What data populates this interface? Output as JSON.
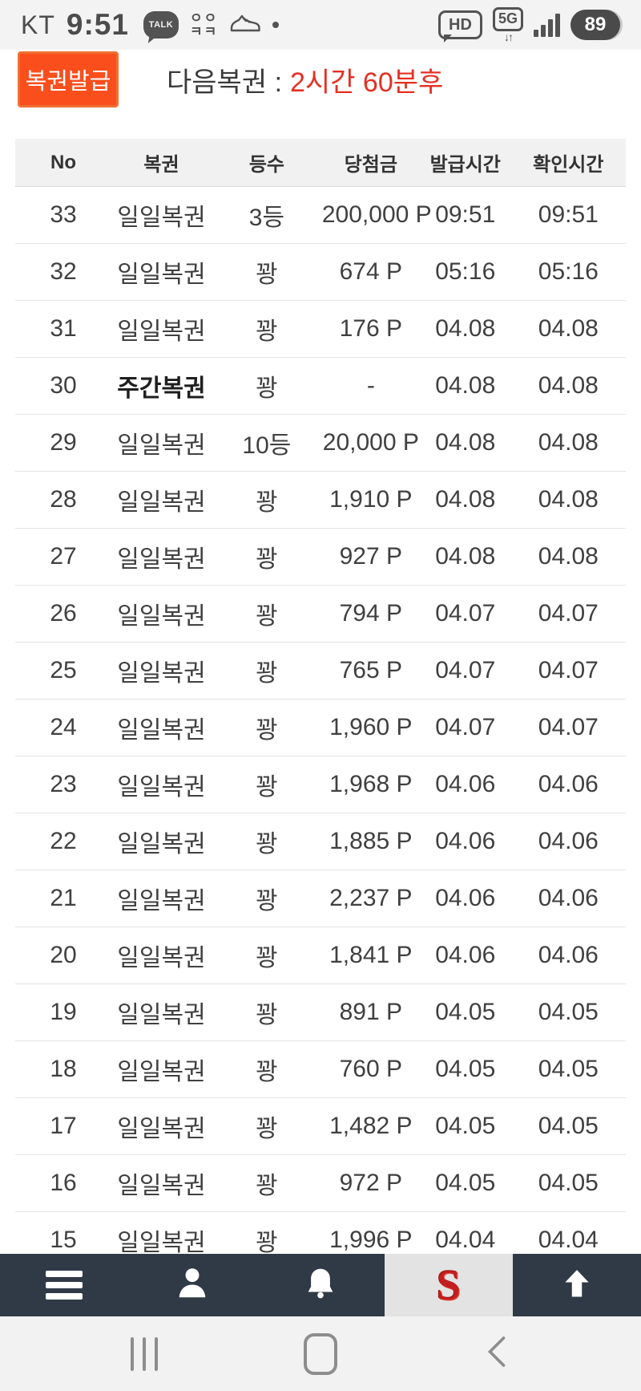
{
  "status_bar": {
    "carrier": "KT",
    "time": "9:51",
    "kakao_label": "TALK",
    "kk_top": "ㅇㅇ",
    "kk_bottom": "ㅋㅋ",
    "hd_label": "HD",
    "network_label": "5G",
    "network_arrows": "↓↑",
    "battery_level": "89"
  },
  "header": {
    "issue_button_label": "복권발급",
    "next_lottery_label": "다음복권 :",
    "next_lottery_time": "2시간 60분후"
  },
  "table": {
    "columns": [
      "No",
      "복권",
      "등수",
      "당첨금",
      "발급시간",
      "확인시간"
    ],
    "rows": [
      {
        "no": "33",
        "lottery": "일일복권",
        "rank": "3등",
        "prize": "200,000 P",
        "issued": "09:51",
        "checked": "09:51",
        "bold": false
      },
      {
        "no": "32",
        "lottery": "일일복권",
        "rank": "꽝",
        "prize": "674 P",
        "issued": "05:16",
        "checked": "05:16",
        "bold": false
      },
      {
        "no": "31",
        "lottery": "일일복권",
        "rank": "꽝",
        "prize": "176 P",
        "issued": "04.08",
        "checked": "04.08",
        "bold": false
      },
      {
        "no": "30",
        "lottery": "주간복권",
        "rank": "꽝",
        "prize": "-",
        "issued": "04.08",
        "checked": "04.08",
        "bold": true
      },
      {
        "no": "29",
        "lottery": "일일복권",
        "rank": "10등",
        "prize": "20,000 P",
        "issued": "04.08",
        "checked": "04.08",
        "bold": false
      },
      {
        "no": "28",
        "lottery": "일일복권",
        "rank": "꽝",
        "prize": "1,910 P",
        "issued": "04.08",
        "checked": "04.08",
        "bold": false
      },
      {
        "no": "27",
        "lottery": "일일복권",
        "rank": "꽝",
        "prize": "927 P",
        "issued": "04.08",
        "checked": "04.08",
        "bold": false
      },
      {
        "no": "26",
        "lottery": "일일복권",
        "rank": "꽝",
        "prize": "794 P",
        "issued": "04.07",
        "checked": "04.07",
        "bold": false
      },
      {
        "no": "25",
        "lottery": "일일복권",
        "rank": "꽝",
        "prize": "765 P",
        "issued": "04.07",
        "checked": "04.07",
        "bold": false
      },
      {
        "no": "24",
        "lottery": "일일복권",
        "rank": "꽝",
        "prize": "1,960 P",
        "issued": "04.07",
        "checked": "04.07",
        "bold": false
      },
      {
        "no": "23",
        "lottery": "일일복권",
        "rank": "꽝",
        "prize": "1,968 P",
        "issued": "04.06",
        "checked": "04.06",
        "bold": false
      },
      {
        "no": "22",
        "lottery": "일일복권",
        "rank": "꽝",
        "prize": "1,885 P",
        "issued": "04.06",
        "checked": "04.06",
        "bold": false
      },
      {
        "no": "21",
        "lottery": "일일복권",
        "rank": "꽝",
        "prize": "2,237 P",
        "issued": "04.06",
        "checked": "04.06",
        "bold": false
      },
      {
        "no": "20",
        "lottery": "일일복권",
        "rank": "꽝",
        "prize": "1,841 P",
        "issued": "04.06",
        "checked": "04.06",
        "bold": false
      },
      {
        "no": "19",
        "lottery": "일일복권",
        "rank": "꽝",
        "prize": "891 P",
        "issued": "04.05",
        "checked": "04.05",
        "bold": false
      },
      {
        "no": "18",
        "lottery": "일일복권",
        "rank": "꽝",
        "prize": "760 P",
        "issued": "04.05",
        "checked": "04.05",
        "bold": false
      },
      {
        "no": "17",
        "lottery": "일일복권",
        "rank": "꽝",
        "prize": "1,482 P",
        "issued": "04.05",
        "checked": "04.05",
        "bold": false
      },
      {
        "no": "16",
        "lottery": "일일복권",
        "rank": "꽝",
        "prize": "972 P",
        "issued": "04.05",
        "checked": "04.05",
        "bold": false
      },
      {
        "no": "15",
        "lottery": "일일복권",
        "rank": "꽝",
        "prize": "1,996 P",
        "issued": "04.04",
        "checked": "04.04",
        "bold": false
      }
    ]
  },
  "bottom_nav": {
    "s_logo_label": "S"
  },
  "colors": {
    "accent_orange": "#fb4e1d",
    "alert_red": "#e53023",
    "nav_dark": "#2f3a46",
    "table_header_bg": "#f1f1f1",
    "statusbar_bg": "#f3f3f3",
    "s_logo_red": "#c31f1f"
  }
}
